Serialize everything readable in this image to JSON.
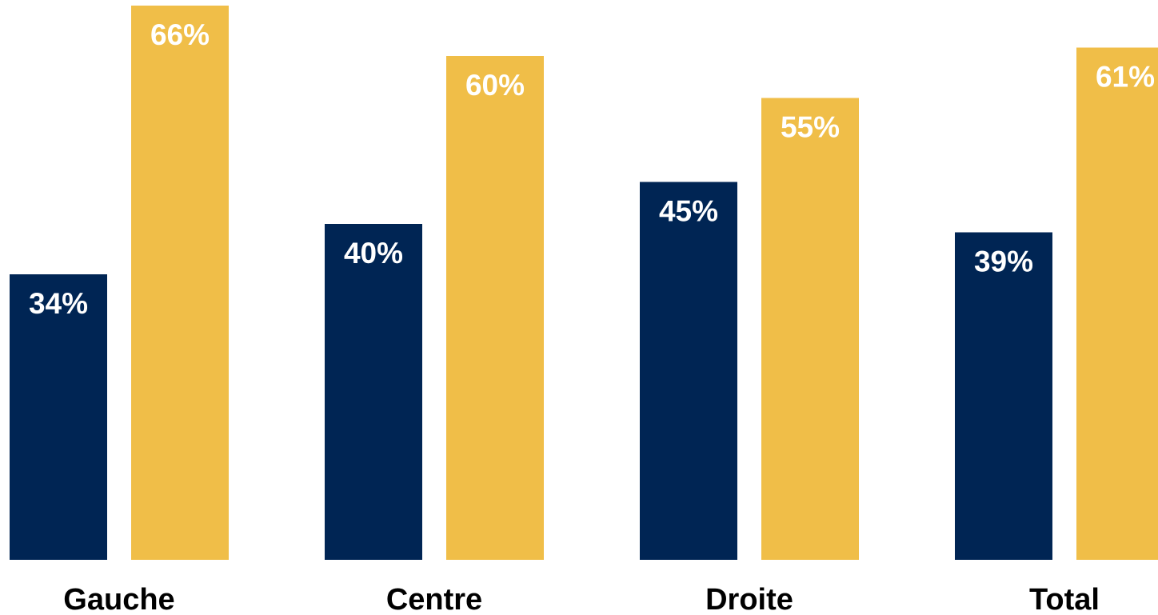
{
  "chart_data": {
    "type": "bar",
    "categories": [
      "Gauche",
      "Centre",
      "Droite",
      "Total"
    ],
    "series": [
      {
        "values": [
          34,
          40,
          45,
          39
        ],
        "labels": [
          "34%",
          "40%",
          "45%",
          "39%"
        ],
        "color": "#002554"
      },
      {
        "values": [
          66,
          60,
          55,
          61
        ],
        "labels": [
          "66%",
          "60%",
          "55%",
          "61%"
        ],
        "color": "#F0BE48"
      }
    ],
    "title": "",
    "xlabel": "",
    "ylabel": "",
    "ylim": [
      0,
      66
    ],
    "grid": false,
    "legend": "none"
  }
}
